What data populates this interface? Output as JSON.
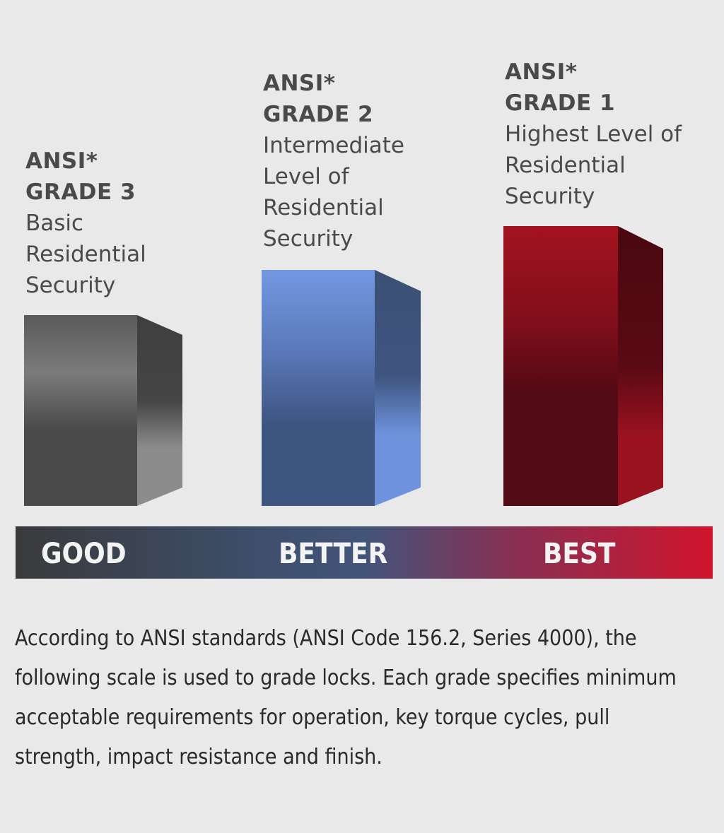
{
  "grades": [
    {
      "ansi": "ANSI*",
      "grade": "GRADE 3",
      "description": "Basic Residential Security",
      "tier": "GOOD",
      "color": "#5f5f60"
    },
    {
      "ansi": "ANSI*",
      "grade": "GRADE 2",
      "description": "Intermediate Level of Residential Security",
      "tier": "BETTER",
      "color": "#6f93d8"
    },
    {
      "ansi": "ANSI*",
      "grade": "GRADE 1",
      "description": "Highest Level of Residential Security",
      "tier": "BEST",
      "color": "#9a1020"
    }
  ],
  "scale": {
    "good": "GOOD",
    "better": "BETTER",
    "best": "BEST"
  },
  "description": "According to ANSI standards (ANSI Code 156.2, Series 4000), the following scale is used to grade locks. Each grade specifies minimum acceptable requirements for operation, key torque cycles, pull strength, impact resistance and finish."
}
